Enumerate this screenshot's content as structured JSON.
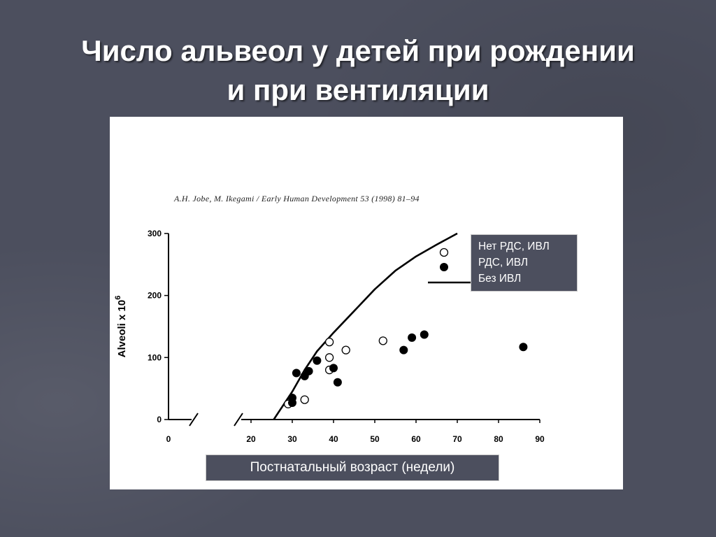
{
  "slide": {
    "title_line1": "Число альвеол у детей при рождении",
    "title_line2": "и при вентиляции",
    "citation": "A.H. Jobe, M. Ikegami / Early Human Development 53 (1998) 81–94",
    "legend_items": [
      "Нет РДС, ИВЛ",
      "РДС, ИВЛ",
      "Без ИВЛ"
    ],
    "x_axis_label": "Постнатальный возраст (недели)"
  },
  "colors": {
    "background": "#4c4f5e",
    "panel": "#ffffff",
    "ink": "#000000",
    "label_box": "#4c4f5e"
  },
  "chart_data": {
    "type": "scatter",
    "ylabel": "Alveoli x 10^6",
    "ylabel_main": "Alveoli x 10",
    "ylabel_exp": "6",
    "xlim": [
      0,
      90
    ],
    "ylim": [
      0,
      300
    ],
    "x_ticks": [
      0,
      20,
      30,
      40,
      50,
      60,
      70,
      80,
      90
    ],
    "y_ticks": [
      0,
      100,
      200,
      300
    ],
    "x_axis_break_between": [
      0,
      20
    ],
    "legend_placement": "top-right",
    "series": [
      {
        "marker": "open-circle",
        "points": [
          [
            29,
            25
          ],
          [
            33,
            32
          ],
          [
            39,
            125
          ],
          [
            39,
            100
          ],
          [
            39,
            80
          ],
          [
            43,
            112
          ],
          [
            52,
            127
          ]
        ]
      },
      {
        "marker": "filled-circle",
        "points": [
          [
            30,
            35
          ],
          [
            30,
            27
          ],
          [
            31,
            75
          ],
          [
            33,
            70
          ],
          [
            34,
            78
          ],
          [
            36,
            95
          ],
          [
            40,
            83
          ],
          [
            41,
            60
          ],
          [
            57,
            112
          ],
          [
            59,
            132
          ],
          [
            62,
            137
          ],
          [
            86,
            117
          ]
        ]
      },
      {
        "marker": "line",
        "points": [
          [
            25.5,
            0
          ],
          [
            27,
            15
          ],
          [
            30,
            45
          ],
          [
            33,
            80
          ],
          [
            36,
            110
          ],
          [
            40,
            140
          ],
          [
            45,
            175
          ],
          [
            50,
            210
          ],
          [
            55,
            240
          ],
          [
            60,
            263
          ],
          [
            65,
            282
          ],
          [
            70,
            300
          ]
        ]
      }
    ]
  }
}
